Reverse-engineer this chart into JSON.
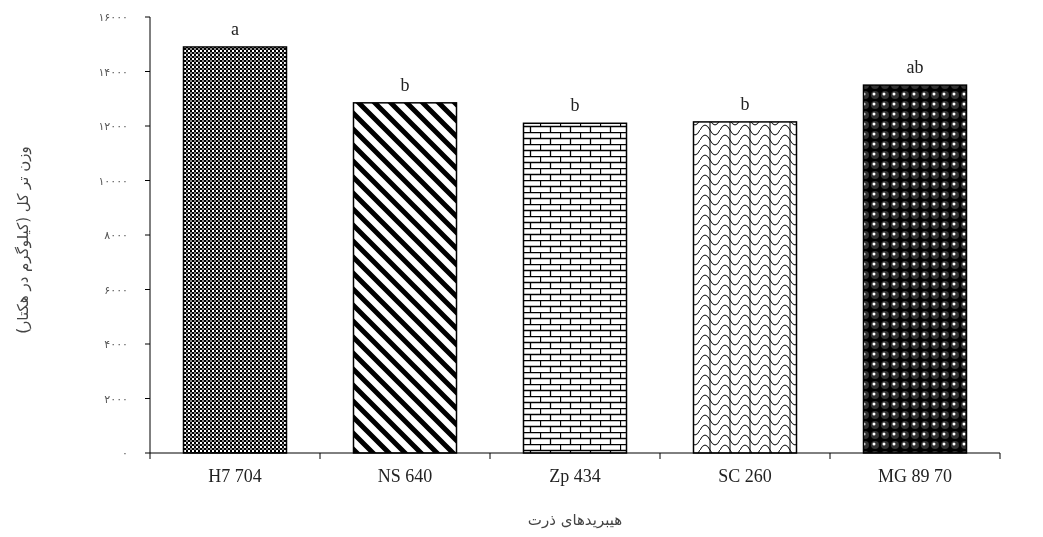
{
  "chart_data": {
    "type": "bar",
    "xlabel": "هیبریدهای ذرت",
    "ylabel": "وزن تر کل (کیلوگرم در هکتار)",
    "categories": [
      "H7 704",
      "NS 640",
      "Zp 434",
      "SC 260",
      "MG 89 70"
    ],
    "values": [
      14900,
      12850,
      12100,
      12150,
      13500
    ],
    "color": "#000000",
    "ylim": [
      0,
      16000
    ],
    "yticks": [
      {
        "value": 0,
        "label": "۰"
      },
      {
        "value": 2000,
        "label": "۲۰۰۰"
      },
      {
        "value": 4000,
        "label": "۴۰۰۰"
      },
      {
        "value": 6000,
        "label": "۶۰۰۰"
      },
      {
        "value": 8000,
        "label": "۸۰۰۰"
      },
      {
        "value": 10000,
        "label": "۱۰۰۰۰"
      },
      {
        "value": 12000,
        "label": "۱۲۰۰۰"
      },
      {
        "value": 14000,
        "label": "۱۴۰۰۰"
      },
      {
        "value": 16000,
        "label": "۱۶۰۰۰"
      }
    ],
    "annotations": [
      {
        "text": "a",
        "x": "H7 704",
        "y": 14900
      },
      {
        "text": "b",
        "x": "NS 640",
        "y": 12850
      },
      {
        "text": "b",
        "x": "Zp 434",
        "y": 12100
      },
      {
        "text": "b",
        "x": "SC 260",
        "y": 12150
      },
      {
        "text": "ab",
        "x": "MG 89 70",
        "y": 13500
      }
    ],
    "grid": false
  }
}
